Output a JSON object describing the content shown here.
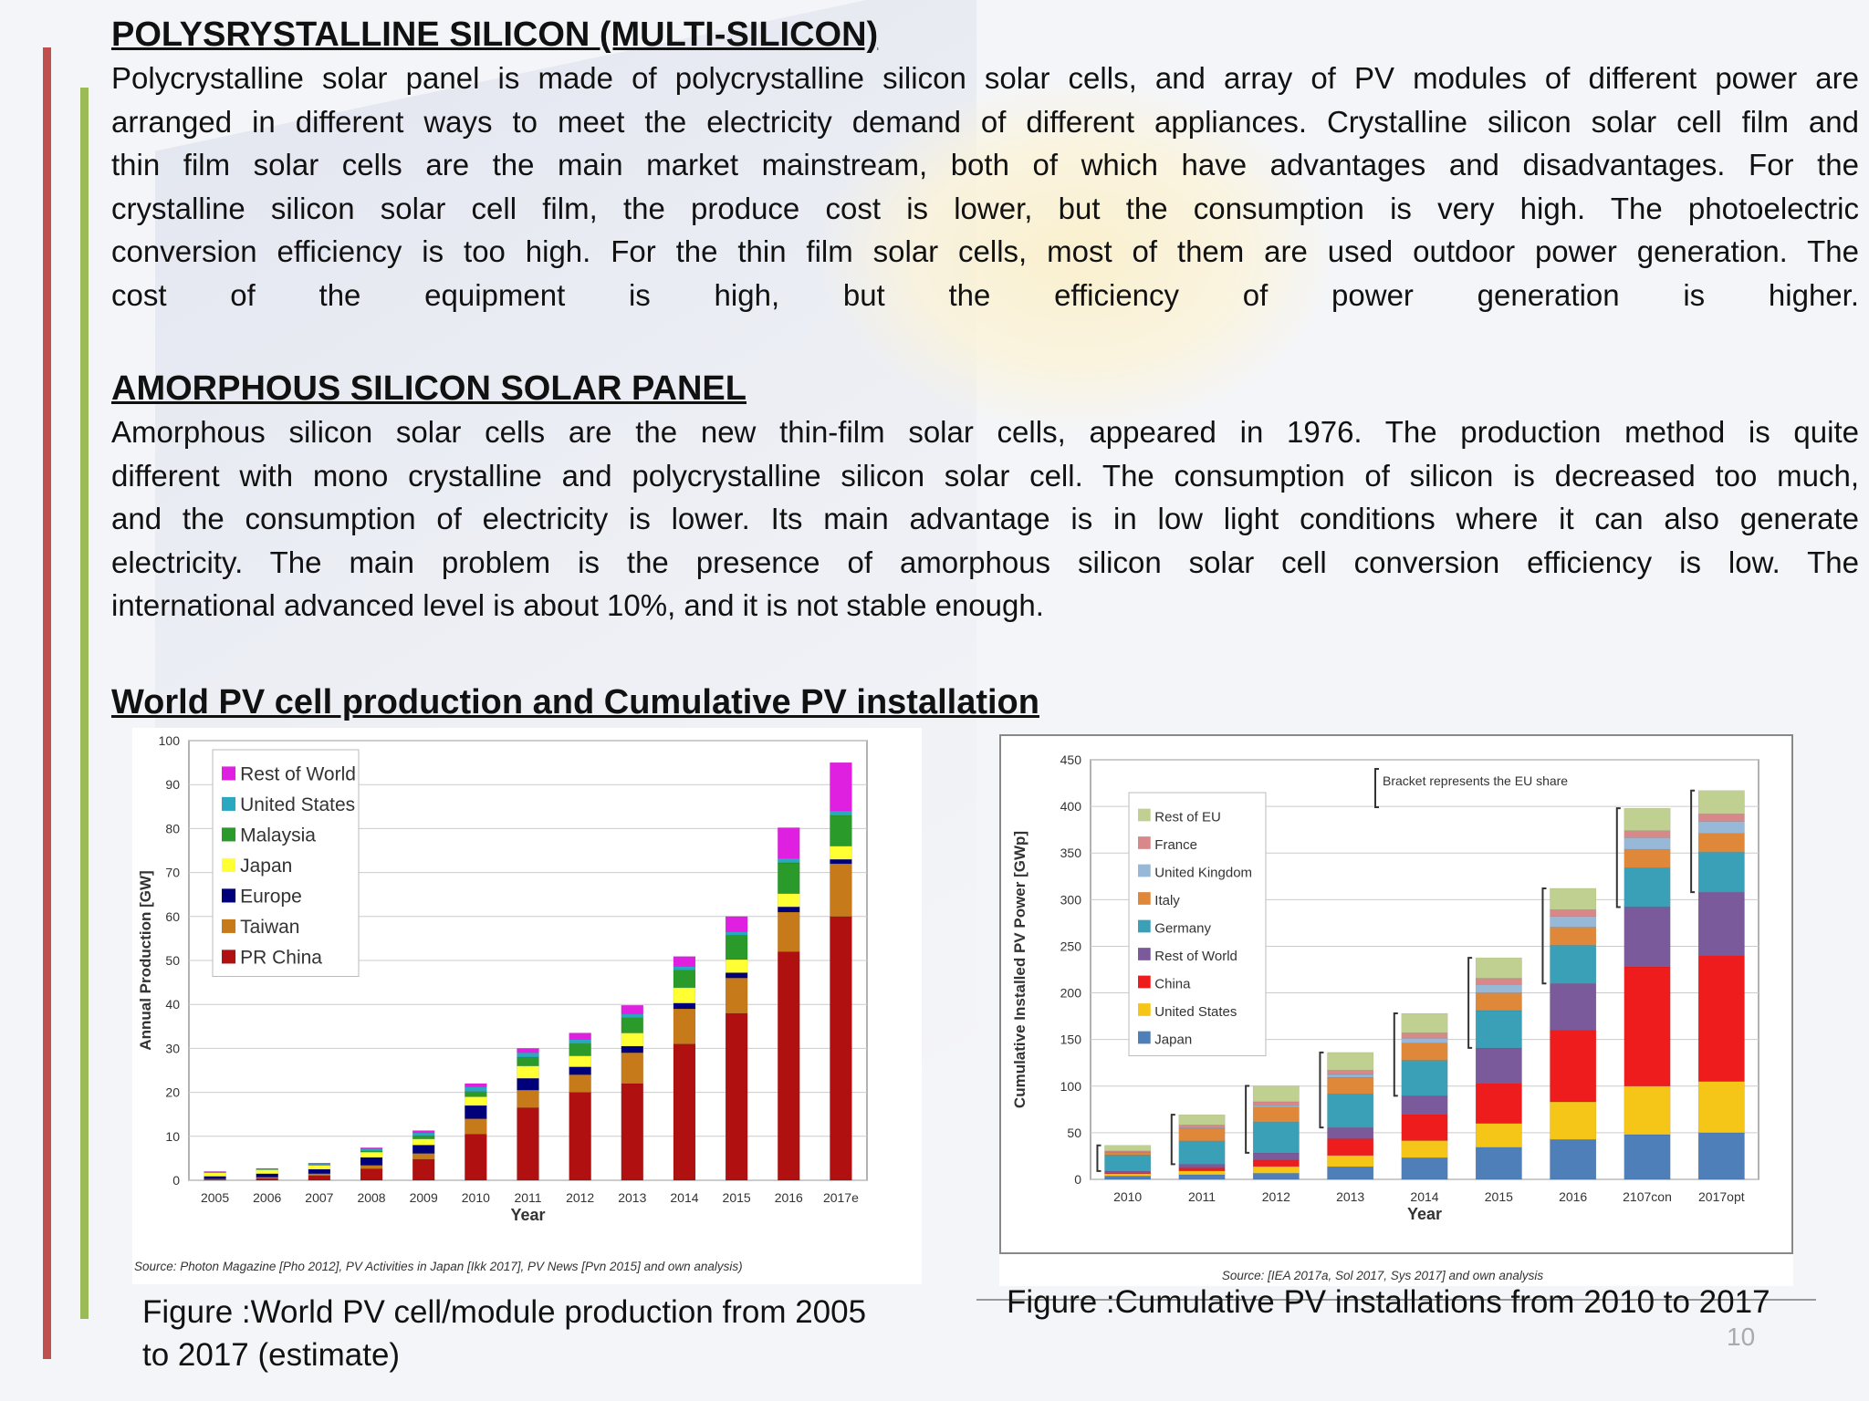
{
  "sections": [
    {
      "heading": "POLYSRYSTALLINE SILICON (MULTI-SILICON)",
      "lines": [
        "Polycrystalline solar panel is made of polycrystalline silicon solar cells, and array of PV modules of different power are",
        "arranged in different ways to meet the electricity demand of different appliances. Crystalline silicon solar cell film and",
        "thin film solar cells are the main market mainstream, both of which have advantages and disadvantages. For the",
        "crystalline silicon solar cell film, the produce cost is lower, but the consumption is very high. The  photoelectric",
        "conversion efficiency is too high. For the thin film solar cells, most of them are used outdoor power generation. The",
        "cost of the equipment is high, but the efficiency of power generation is higher."
      ]
    },
    {
      "heading": "AMORPHOUS SILICON SOLAR PANEL",
      "lines": [
        "Amorphous silicon solar cells are the new thin-film solar cells, appeared in 1976. The production method is quite",
        "different with mono crystalline and polycrystalline silicon solar cell. The consumption of silicon is decreased too much,",
        "and the consumption of electricity is lower. Its main advantage is in low light conditions where it can also generate",
        "electricity. The main problem is the presence of amorphous silicon solar cell conversion efficiency is low. The",
        "international advanced level is about 10%, and it is not stable enough."
      ]
    },
    {
      "heading": "World PV cell production and Cumulative PV installation"
    }
  ],
  "chart_data": [
    {
      "type": "bar",
      "stacked": true,
      "categories": [
        "2005",
        "2006",
        "2007",
        "2008",
        "2009",
        "2010",
        "2011",
        "2012",
        "2013",
        "2014",
        "2015",
        "2016",
        "2017e"
      ],
      "xlabel": "Year",
      "ylabel": "Annual Production [GW]",
      "ylim": [
        0,
        100
      ],
      "yticks": [
        0,
        10,
        20,
        30,
        40,
        50,
        60,
        70,
        80,
        90,
        100
      ],
      "grid": true,
      "legend_position": "top-left",
      "source": "Source: Photon Magazine [Pho 2012], PV Activities in Japan [Ikk 2017], PV News [Pvn 2015] and own analysis)",
      "series": [
        {
          "name": "PR China",
          "color": "#b01010",
          "values": [
            0.1,
            0.4,
            1.1,
            2.6,
            4.8,
            10.5,
            16.5,
            20,
            22,
            31,
            38,
            52,
            60
          ]
        },
        {
          "name": "Taiwan",
          "color": "#c77a1a",
          "values": [
            0.2,
            0.3,
            0.4,
            0.8,
            1.3,
            3.5,
            4,
            4,
            7,
            8,
            8,
            9,
            12
          ]
        },
        {
          "name": "Europe",
          "color": "#00007a",
          "values": [
            0.6,
            0.8,
            1.0,
            1.8,
            1.9,
            3,
            2.7,
            1.8,
            1.5,
            1.3,
            1.2,
            1.2,
            1
          ]
        },
        {
          "name": "Japan",
          "color": "#ffff33",
          "values": [
            0.8,
            0.9,
            0.9,
            1.2,
            1.4,
            2,
            2.8,
            2.5,
            3,
            3.5,
            3,
            3,
            3
          ]
        },
        {
          "name": "Malaysia",
          "color": "#2a9a2a",
          "values": [
            0,
            0,
            0,
            0.3,
            0.8,
            1.2,
            2,
            2.8,
            3.5,
            4,
            5.5,
            7,
            7
          ]
        },
        {
          "name": "United States",
          "color": "#2aa8c0",
          "values": [
            0.2,
            0.2,
            0.3,
            0.4,
            0.6,
            1,
            1,
            0.9,
            0.8,
            0.8,
            0.8,
            1,
            1
          ]
        },
        {
          "name": "Rest of World",
          "color": "#e020e0",
          "values": [
            0.1,
            0.1,
            0.2,
            0.3,
            0.5,
            0.8,
            1,
            1.5,
            2,
            2.3,
            3.5,
            7,
            11
          ]
        }
      ],
      "caption": "Figure :World PV cell/module production from 2005 to 2017 (estimate)"
    },
    {
      "type": "bar",
      "stacked": true,
      "categories": [
        "2010",
        "2011",
        "2012",
        "2013",
        "2014",
        "2015",
        "2016",
        "2107con",
        "2017opt"
      ],
      "xlabel": "Year",
      "ylabel": "Cumulative Installed PV Power [GWp]",
      "ylim": [
        0,
        450
      ],
      "yticks": [
        0,
        50,
        100,
        150,
        200,
        250,
        300,
        350,
        400,
        450
      ],
      "grid": true,
      "legend_position": "top-left",
      "annotation": "Bracket represents the EU share",
      "source": "Source: [IEA 2017a, Sol 2017, Sys 2017] and own analysis",
      "series": [
        {
          "name": "Japan",
          "color": "#4f7fb8",
          "values": [
            3.6,
            5,
            6.6,
            13.6,
            23.3,
            34.4,
            42.8,
            48,
            50
          ]
        },
        {
          "name": "United States",
          "color": "#f5c518",
          "values": [
            2.5,
            4,
            7.2,
            12,
            18.3,
            25.6,
            40.3,
            52,
            55
          ]
        },
        {
          "name": "China",
          "color": "#ee1c1c",
          "values": [
            0.8,
            3.3,
            6.7,
            18,
            28,
            43,
            77,
            128,
            135
          ]
        },
        {
          "name": "Rest of World",
          "color": "#7a5a9a",
          "values": [
            2,
            4,
            8,
            12,
            20,
            38,
            50,
            64,
            68
          ]
        },
        {
          "name": "Germany",
          "color": "#3aa0b8",
          "values": [
            17,
            25,
            33,
            36,
            38,
            40,
            41,
            42,
            43
          ]
        },
        {
          "name": "Italy",
          "color": "#e0883a",
          "values": [
            3.5,
            13,
            16,
            18,
            18.5,
            19,
            19.3,
            20,
            20
          ]
        },
        {
          "name": "United Kingdom",
          "color": "#98b8d8",
          "values": [
            0.1,
            1,
            1.8,
            2.9,
            5.2,
            9,
            11.6,
            12.5,
            13
          ]
        },
        {
          "name": "France",
          "color": "#d88888",
          "values": [
            1,
            3,
            4,
            4.6,
            5.7,
            6.6,
            7.1,
            7.5,
            8
          ]
        },
        {
          "name": "Rest of EU",
          "color": "#c0d090",
          "values": [
            6,
            11,
            17,
            19,
            21,
            22,
            23,
            24,
            25
          ]
        }
      ],
      "caption": "Figure :Cumulative PV installations from 2010 to 2017"
    }
  ],
  "page_number": "10"
}
